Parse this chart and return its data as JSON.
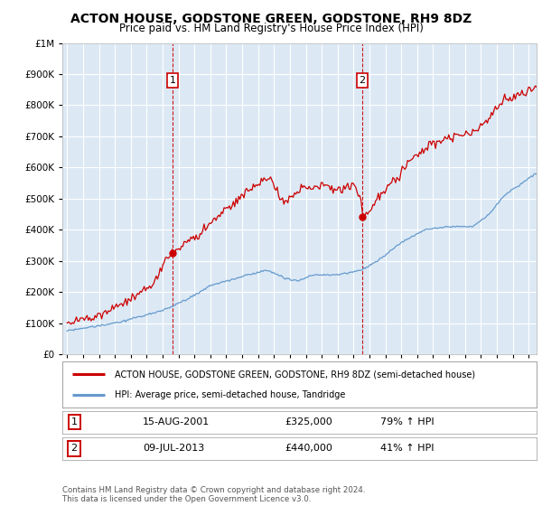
{
  "title": "ACTON HOUSE, GODSTONE GREEN, GODSTONE, RH9 8DZ",
  "subtitle": "Price paid vs. HM Land Registry's House Price Index (HPI)",
  "background_color": "#ffffff",
  "plot_bg_color": "#dce9f5",
  "grid_color": "#ffffff",
  "sale1_price": 325000,
  "sale1_label": "15-AUG-2001",
  "sale1_pct": "79%",
  "sale1_year": 2001,
  "sale1_month": 8,
  "sale2_price": 440000,
  "sale2_label": "09-JUL-2013",
  "sale2_pct": "41%",
  "sale2_year": 2013,
  "sale2_month": 7,
  "legend_line1": "ACTON HOUSE, GODSTONE GREEN, GODSTONE, RH9 8DZ (semi-detached house)",
  "legend_line2": "HPI: Average price, semi-detached house, Tandridge",
  "footnote": "Contains HM Land Registry data © Crown copyright and database right 2024.\nThis data is licensed under the Open Government Licence v3.0.",
  "house_color": "#cc0000",
  "hpi_color": "#6699cc",
  "ylim": [
    0,
    1000000
  ],
  "yticks": [
    0,
    100000,
    200000,
    300000,
    400000,
    500000,
    600000,
    700000,
    800000,
    900000,
    1000000
  ],
  "xmin": 1995.0,
  "xmax": 2024.5
}
